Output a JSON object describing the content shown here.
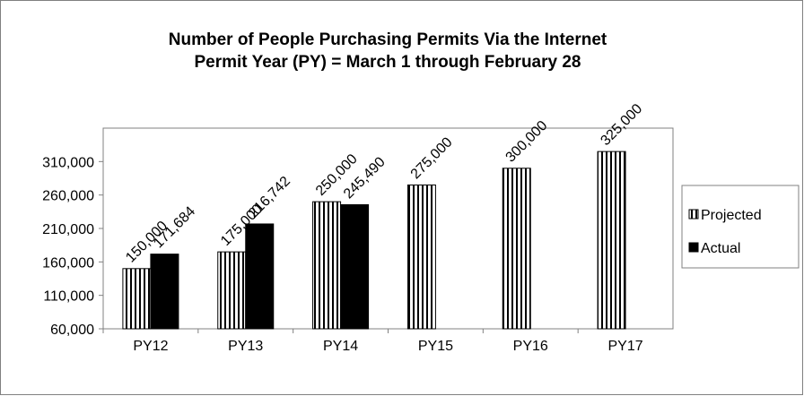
{
  "chart_data": {
    "type": "bar",
    "title": "Number of People Purchasing Permits Via the Internet",
    "subtitle": "Permit Year (PY) = March 1 through February 28",
    "categories": [
      "PY12",
      "PY13",
      "PY14",
      "PY15",
      "PY16",
      "PY17"
    ],
    "series": [
      {
        "name": "Projected",
        "color": "#000000",
        "pattern": "vertical-stripes",
        "values": [
          150000,
          175000,
          250000,
          275000,
          300000,
          325000
        ],
        "value_labels": [
          "150,000",
          "175,000",
          "250,000",
          "275,000",
          "300,000",
          "325,000"
        ]
      },
      {
        "name": "Actual",
        "color": "#000000",
        "values": [
          171684,
          216742,
          245490,
          null,
          null,
          null
        ],
        "value_labels": [
          "171,684",
          "216,742",
          "245,490",
          null,
          null,
          null
        ]
      }
    ],
    "ylim": [
      60000,
      360000
    ],
    "yticks": [
      {
        "value": 60000,
        "label": "60,000"
      },
      {
        "value": 110000,
        "label": "110,000"
      },
      {
        "value": 160000,
        "label": "160,000"
      },
      {
        "value": 210000,
        "label": "210,000"
      },
      {
        "value": 260000,
        "label": "260,000"
      },
      {
        "value": 310000,
        "label": "310,000"
      }
    ],
    "grid": false,
    "legend": "right"
  }
}
